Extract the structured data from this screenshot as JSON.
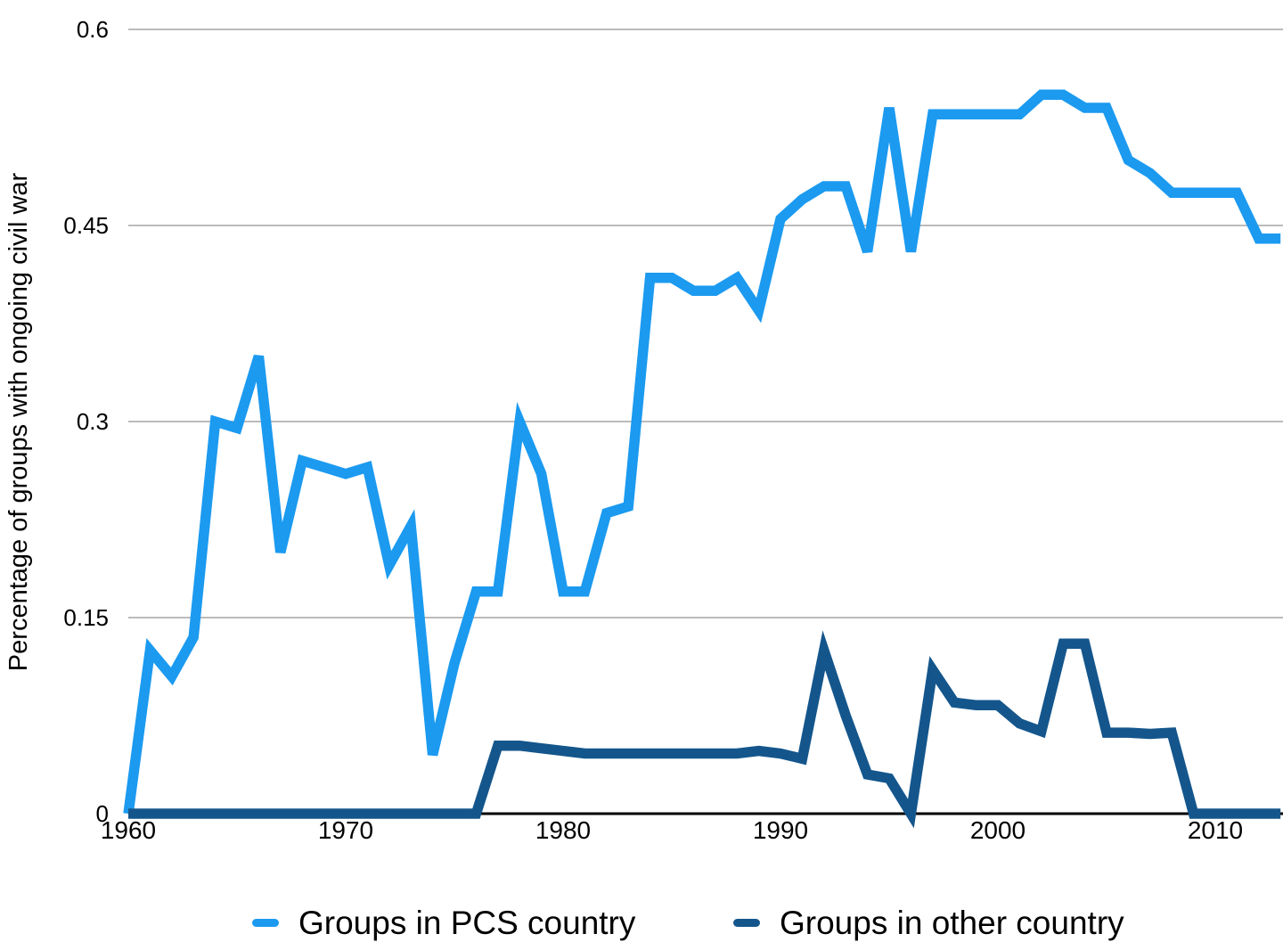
{
  "y_axis_title": "Percentage of groups with ongoing civil war",
  "legend": [
    {
      "label": "Groups in PCS country",
      "color": "#1B9AF0"
    },
    {
      "label": "Groups in other country",
      "color": "#14568C"
    }
  ],
  "colors": {
    "pcs": "#1B9AF0",
    "other": "#14568C",
    "gridline": "#BBBBBB",
    "axis": "#000000",
    "text": "#000000"
  },
  "chart_data": {
    "type": "line",
    "title": "",
    "xlabel": "",
    "ylabel": "Percentage of groups with ongoing civil war",
    "xlim": [
      1960,
      2013
    ],
    "ylim": [
      0,
      0.6
    ],
    "x_ticks": [
      1960,
      1970,
      1980,
      1990,
      2000,
      2010
    ],
    "y_ticks": [
      0,
      0.15,
      0.3,
      0.45,
      0.6
    ],
    "grid": "horizontal",
    "legend_position": "bottom",
    "x": [
      1960,
      1961,
      1962,
      1963,
      1964,
      1965,
      1966,
      1967,
      1968,
      1969,
      1970,
      1971,
      1972,
      1973,
      1974,
      1975,
      1976,
      1977,
      1978,
      1979,
      1980,
      1981,
      1982,
      1983,
      1984,
      1985,
      1986,
      1987,
      1988,
      1989,
      1990,
      1991,
      1992,
      1993,
      1994,
      1995,
      1996,
      1997,
      1998,
      1999,
      2000,
      2001,
      2002,
      2003,
      2004,
      2005,
      2006,
      2007,
      2008,
      2009,
      2010,
      2011,
      2012,
      2013
    ],
    "series": [
      {
        "name": "Groups in PCS country",
        "values": [
          0,
          0.125,
          0.105,
          0.135,
          0.3,
          0.295,
          0.35,
          0.2,
          0.27,
          0.265,
          0.26,
          0.265,
          0.19,
          0.22,
          0.045,
          0.115,
          0.17,
          0.17,
          0.3,
          0.26,
          0.17,
          0.17,
          0.23,
          0.235,
          0.41,
          0.41,
          0.4,
          0.4,
          0.41,
          0.385,
          0.455,
          0.47,
          0.48,
          0.48,
          0.43,
          0.54,
          0.43,
          0.535,
          0.535,
          0.535,
          0.535,
          0.535,
          0.55,
          0.55,
          0.54,
          0.54,
          0.5,
          0.49,
          0.475,
          0.475,
          0.475,
          0.475,
          0.44,
          0.44
        ]
      },
      {
        "name": "Groups in other country",
        "values": [
          0,
          0,
          0,
          0,
          0,
          0,
          0,
          0,
          0,
          0,
          0,
          0,
          0,
          0,
          0,
          0,
          0,
          0.052,
          0.052,
          0.05,
          0.048,
          0.046,
          0.046,
          0.046,
          0.046,
          0.046,
          0.046,
          0.046,
          0.046,
          0.048,
          0.046,
          0.042,
          0.125,
          0.075,
          0.03,
          0.027,
          0,
          0.11,
          0.085,
          0.083,
          0.083,
          0.069,
          0.063,
          0.13,
          0.13,
          0.062,
          0.062,
          0.061,
          0.062,
          0,
          0,
          0,
          0,
          0
        ]
      }
    ]
  }
}
